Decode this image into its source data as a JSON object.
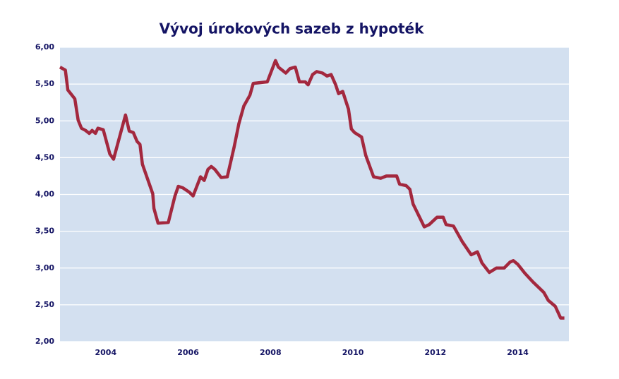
{
  "chart_data": {
    "type": "line",
    "title": "Vývoj úrokových sazeb z hypoték",
    "x": [
      2002.89,
      2003.02,
      2003.08,
      2003.25,
      2003.33,
      2003.41,
      2003.51,
      2003.6,
      2003.67,
      2003.75,
      2003.81,
      2003.94,
      2004.1,
      2004.19,
      2004.48,
      2004.57,
      2004.67,
      2004.76,
      2004.83,
      2004.89,
      2005.14,
      2005.17,
      2005.27,
      2005.52,
      2005.68,
      2005.76,
      2005.87,
      2006.03,
      2006.12,
      2006.3,
      2006.39,
      2006.48,
      2006.56,
      2006.65,
      2006.8,
      2006.95,
      2007.11,
      2007.23,
      2007.35,
      2007.5,
      2007.58,
      2007.92,
      2008.12,
      2008.19,
      2008.37,
      2008.47,
      2008.6,
      2008.7,
      2008.84,
      2008.91,
      2009.02,
      2009.12,
      2009.26,
      2009.37,
      2009.47,
      2009.58,
      2009.65,
      2009.75,
      2009.89,
      2009.96,
      2010.04,
      2010.21,
      2010.31,
      2010.5,
      2010.67,
      2010.81,
      2011.06,
      2011.13,
      2011.29,
      2011.38,
      2011.46,
      2011.73,
      2011.85,
      2012.04,
      2012.19,
      2012.26,
      2012.44,
      2012.65,
      2012.87,
      2013.02,
      2013.13,
      2013.31,
      2013.48,
      2013.67,
      2013.81,
      2013.89,
      2014.0,
      2014.17,
      2014.37,
      2014.63,
      2014.74,
      2014.91,
      2015.04,
      2015.13
    ],
    "values": [
      5.73,
      5.69,
      5.42,
      5.3,
      5.01,
      4.9,
      4.87,
      4.83,
      4.87,
      4.83,
      4.9,
      4.88,
      4.55,
      4.48,
      5.08,
      4.86,
      4.84,
      4.72,
      4.68,
      4.41,
      4.01,
      3.81,
      3.61,
      3.62,
      3.98,
      4.11,
      4.09,
      4.03,
      3.98,
      4.24,
      4.19,
      4.34,
      4.38,
      4.34,
      4.23,
      4.24,
      4.63,
      4.96,
      5.2,
      5.35,
      5.51,
      5.53,
      5.82,
      5.73,
      5.65,
      5.71,
      5.73,
      5.53,
      5.53,
      5.49,
      5.63,
      5.67,
      5.65,
      5.61,
      5.63,
      5.49,
      5.37,
      5.4,
      5.16,
      4.89,
      4.84,
      4.78,
      4.53,
      4.24,
      4.22,
      4.25,
      4.25,
      4.14,
      4.12,
      4.07,
      3.87,
      3.56,
      3.59,
      3.69,
      3.69,
      3.59,
      3.57,
      3.36,
      3.18,
      3.22,
      3.07,
      2.94,
      3.0,
      3.0,
      3.08,
      3.1,
      3.05,
      2.93,
      2.81,
      2.67,
      2.56,
      2.48,
      2.32,
      2.32
    ],
    "color": "#a3283e",
    "background": "#d3e0f0",
    "grid": true,
    "xlim": [
      2002.89,
      2015.24
    ],
    "xticks": [
      2004,
      2006,
      2008,
      2010,
      2012,
      2014
    ],
    "ylim": [
      2,
      6
    ],
    "yticks": [
      {
        "value": 2,
        "label": "2,00"
      },
      {
        "value": 2.5,
        "label": "2,50"
      },
      {
        "value": 3,
        "label": "3,00"
      },
      {
        "value": 3.5,
        "label": "3,50"
      },
      {
        "value": 4,
        "label": "4,00"
      },
      {
        "value": 4.5,
        "label": "4,50"
      },
      {
        "value": 5,
        "label": "5,00"
      },
      {
        "value": 5.5,
        "label": "5,50"
      },
      {
        "value": 6,
        "label": "6,00"
      }
    ]
  }
}
